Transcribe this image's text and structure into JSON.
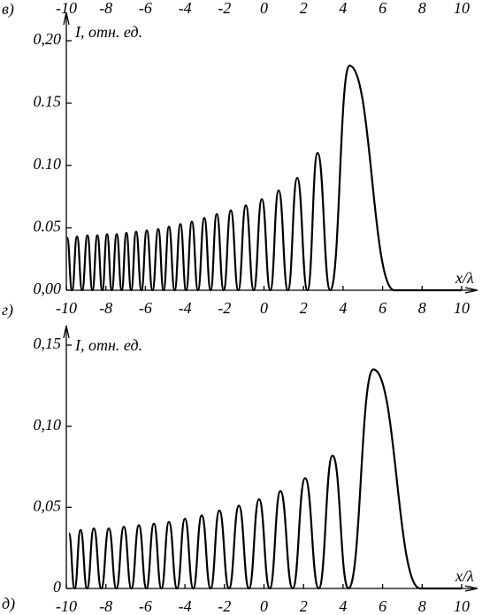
{
  "panel_labels": [
    "в)",
    "г)",
    "д)"
  ],
  "top_strip_ticks": [
    "-10",
    "-8",
    "-6",
    "-4",
    "-2",
    "0",
    "2",
    "4",
    "6",
    "8",
    "10"
  ],
  "chart_data": [
    {
      "type": "line",
      "y_label": "I, отн. ед.",
      "x_label": "x/λ",
      "color": "#000000",
      "xlim": [
        -10,
        10
      ],
      "ylim": [
        0,
        0.2
      ],
      "xticks": [
        -10,
        -8,
        -6,
        -4,
        -2,
        0,
        2,
        4,
        6,
        8,
        10
      ],
      "yticks": [
        {
          "value": 0,
          "label": "0,00"
        },
        {
          "value": 0.05,
          "label": "0.05"
        },
        {
          "value": 0.1,
          "label": "0.10"
        },
        {
          "value": 0.15,
          "label": "0.15"
        },
        {
          "value": 0.2,
          "label": "0,20"
        }
      ],
      "x": [
        -9.96,
        -9.71,
        -9.46,
        -9.2,
        -8.93,
        -8.68,
        -8.43,
        -8.18,
        -7.94,
        -7.7,
        -7.45,
        -7.2,
        -6.96,
        -6.72,
        -6.47,
        -6.2,
        -5.93,
        -5.64,
        -5.35,
        -5.08,
        -4.81,
        -4.52,
        -4.23,
        -3.94,
        -3.65,
        -3.34,
        -3.02,
        -2.7,
        -2.39,
        -2.04,
        -1.68,
        -1.3,
        -0.92,
        -0.52,
        -0.11,
        0.32,
        0.74,
        1.21,
        1.68,
        2.2,
        2.71,
        3.35,
        4.32,
        6.6,
        10
      ],
      "values": [
        0.042,
        0,
        0.043,
        0,
        0.044,
        0,
        0.044,
        0,
        0.045,
        0,
        0.045,
        0,
        0.046,
        0,
        0.047,
        0,
        0.048,
        0,
        0.049,
        0,
        0.051,
        0,
        0.053,
        0,
        0.055,
        0,
        0.058,
        0,
        0.061,
        0,
        0.064,
        0,
        0.068,
        0,
        0.073,
        0,
        0.08,
        0,
        0.09,
        0,
        0.11,
        0,
        0.18,
        0,
        0
      ]
    },
    {
      "type": "line",
      "y_label": "I, отн. ед.",
      "x_label": "x/λ",
      "color": "#000000",
      "xlim": [
        -10,
        10
      ],
      "ylim": [
        0,
        0.15
      ],
      "xticks": [
        -10,
        -8,
        -6,
        -4,
        -2,
        0,
        2,
        4,
        6,
        8,
        10
      ],
      "yticks": [
        0,
        {
          "value": 0.05,
          "label": "0,05"
        },
        {
          "value": 0.1,
          "label": "0,10"
        },
        {
          "value": 0.15,
          "label": "0,15"
        }
      ],
      "x": [
        -9.87,
        -9.58,
        -9.28,
        -8.95,
        -8.61,
        -8.23,
        -7.85,
        -7.47,
        -7.09,
        -6.71,
        -6.33,
        -5.95,
        -5.57,
        -5.19,
        -4.81,
        -4.4,
        -4.0,
        -3.58,
        -3.15,
        -2.7,
        -2.26,
        -1.77,
        -1.27,
        -0.76,
        -0.25,
        0.29,
        0.83,
        1.45,
        2.08,
        2.77,
        3.47,
        4.27,
        5.53,
        7.9,
        10
      ],
      "values": [
        0.034,
        0,
        0.036,
        0,
        0.037,
        0,
        0.037,
        0,
        0.038,
        0,
        0.039,
        0,
        0.04,
        0,
        0.041,
        0,
        0.043,
        0,
        0.045,
        0,
        0.048,
        0,
        0.051,
        0,
        0.055,
        0,
        0.06,
        0,
        0.068,
        0,
        0.082,
        0,
        0.135,
        0,
        0
      ]
    }
  ]
}
